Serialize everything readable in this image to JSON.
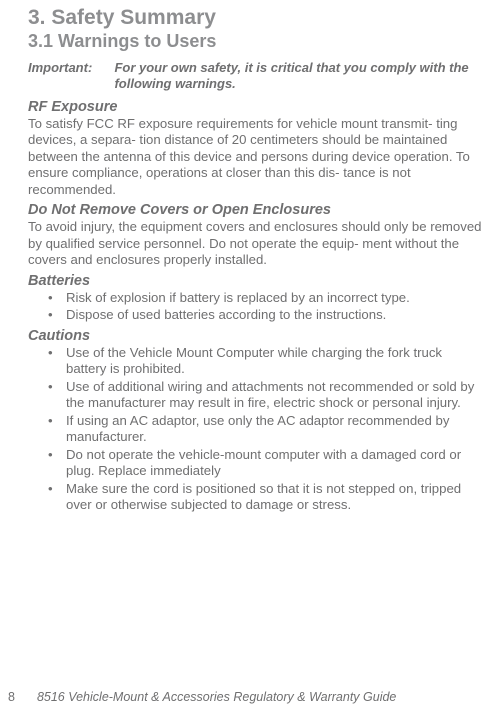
{
  "heading1": "3.  Safety Summary",
  "heading2": "3.1  Warnings to Users",
  "important": {
    "label": "Important:",
    "text": "For your own safety, it is critical that you comply with the following warnings."
  },
  "sections": {
    "rf": {
      "title": "RF Exposure",
      "body": "To satisfy FCC RF exposure requirements for vehicle mount transmit- ting devices, a separa- tion distance of 20 centimeters should be maintained between the antenna of this device and persons during device operation. To ensure compliance, operations at closer than this dis- tance is not recommended."
    },
    "covers": {
      "title": "Do Not Remove Covers or Open Enclosures",
      "body": "To avoid injury, the equipment covers and enclosures should only be removed by qualified service personnel. Do not operate the equip- ment without the covers and enclosures properly installed."
    },
    "batteries": {
      "title": "Batteries",
      "items": [
        "Risk of explosion if battery is replaced by an incorrect type.",
        "Dispose of used batteries according to the instructions."
      ]
    },
    "cautions": {
      "title": "Cautions",
      "items": [
        "Use of the Vehicle Mount Computer while charging the fork truck battery is prohibited.",
        "Use of additional wiring and attachments not recommended or sold by the manufacturer may result in fire, electric shock or personal injury.",
        "If using an AC adaptor, use only the AC adaptor recommended by manufacturer.",
        "Do not operate the vehicle-mount computer with a damaged cord or plug. Replace immediately",
        "Make sure the cord is positioned so that it is not stepped on, tripped over or otherwise subjected to damage or stress."
      ]
    }
  },
  "footer": {
    "page": "8",
    "title": "8516 Vehicle-Mount & Accessories Regulatory & Warranty Guide"
  }
}
